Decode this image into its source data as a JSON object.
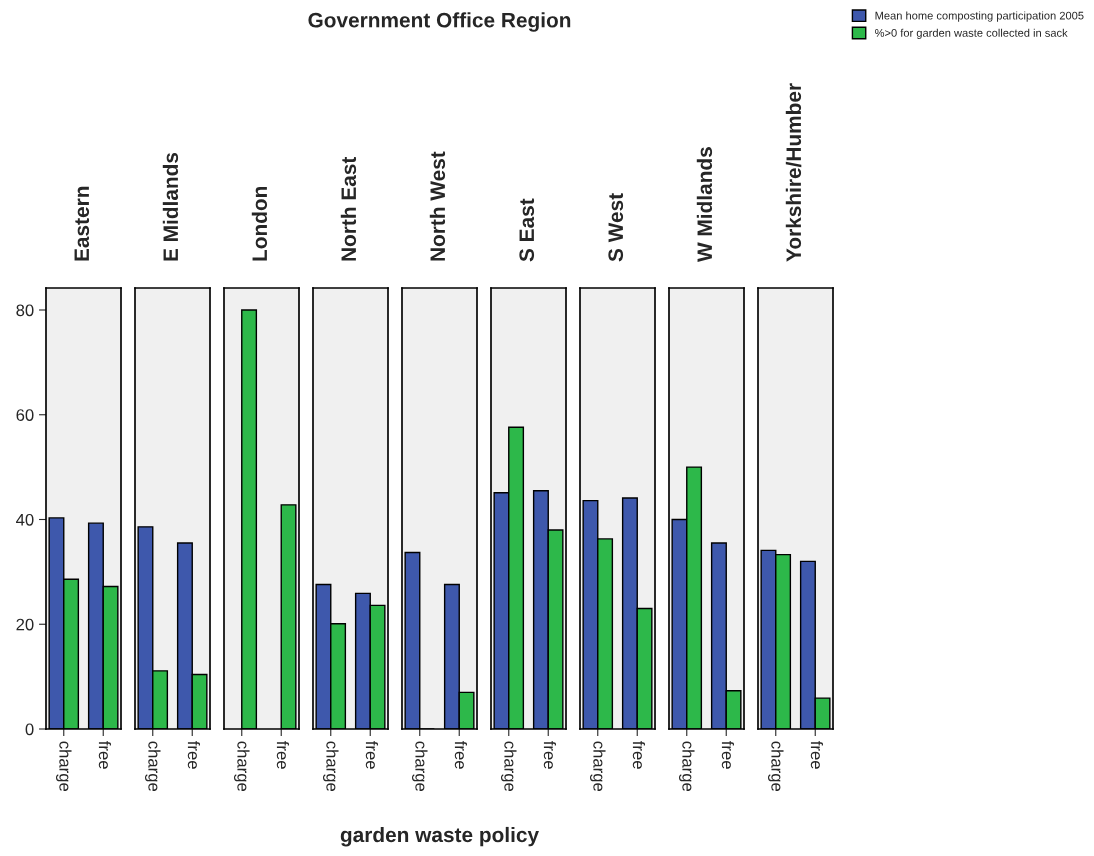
{
  "chart_data": [
    {
      "type": "bar",
      "title": "Eastern",
      "legend": "top right",
      "categories": [
        "charge",
        "free"
      ],
      "ylim": [
        0,
        84.2
      ],
      "yticks": [
        0,
        20,
        40,
        60,
        80
      ],
      "series": [
        {
          "name": "Mean home composting participation 2005",
          "color": "#3e58ac",
          "values": [
            40.3,
            39.3
          ]
        },
        {
          "name": "%>0 for garden waste collected in sack",
          "color": "#2db84a",
          "values": [
            28.6,
            27.2
          ]
        }
      ]
    },
    {
      "type": "bar",
      "title": "E Midlands",
      "categories": [
        "charge",
        "free"
      ],
      "ylim": [
        0,
        84.2
      ],
      "yticks": [
        0,
        20,
        40,
        60,
        80
      ],
      "tick_labels": "x",
      "series": [
        {
          "color": "#3e58ac",
          "values": [
            38.6,
            35.5
          ]
        },
        {
          "color": "#2db84a",
          "values": [
            11.1,
            10.4
          ]
        }
      ]
    },
    {
      "type": "bar",
      "title": "London",
      "categories": [
        "charge",
        "free"
      ],
      "ylim": [
        0,
        84.2
      ],
      "yticks": [
        0,
        20,
        40,
        60,
        80
      ],
      "tick_labels": "x",
      "series": [
        {
          "values": [
            null,
            null
          ]
        },
        {
          "color": "#2db84a",
          "values": [
            80.0,
            42.8
          ]
        }
      ]
    },
    {
      "type": "bar",
      "title": "North East",
      "categories": [
        "charge",
        "free"
      ],
      "ylim": [
        0,
        84.2
      ],
      "yticks": [
        0,
        20,
        40,
        60,
        80
      ],
      "tick_labels": "x",
      "series": [
        {
          "color": "#3e58ac",
          "values": [
            27.6,
            25.9
          ]
        },
        {
          "color": "#2db84a",
          "values": [
            20.1,
            23.6
          ]
        }
      ]
    },
    {
      "type": "bar",
      "title": "North West",
      "annotations": [
        "Government Office Region"
      ],
      "xlabel": "garden waste policy",
      "categories": [
        "charge",
        "free"
      ],
      "ylim": [
        0,
        84.2
      ],
      "yticks": [
        0,
        20,
        40,
        60,
        80
      ],
      "tick_labels": "x",
      "series": [
        {
          "color": "#3e58ac",
          "values": [
            33.7,
            27.6
          ]
        },
        {
          "color": "#2db84a",
          "values": [
            0,
            7.0
          ]
        }
      ]
    },
    {
      "type": "bar",
      "title": "S East",
      "categories": [
        "charge",
        "free"
      ],
      "ylim": [
        0,
        84.2
      ],
      "yticks": [
        0,
        20,
        40,
        60,
        80
      ],
      "tick_labels": "x",
      "series": [
        {
          "color": "#3e58ac",
          "values": [
            45.1,
            45.5
          ]
        },
        {
          "color": "#2db84a",
          "values": [
            57.6,
            38.0
          ]
        }
      ]
    },
    {
      "type": "bar",
      "title": "S West",
      "categories": [
        "charge",
        "free"
      ],
      "ylim": [
        0,
        84.2
      ],
      "yticks": [
        0,
        20,
        40,
        60,
        80
      ],
      "tick_labels": "x",
      "series": [
        {
          "color": "#3e58ac",
          "values": [
            43.6,
            44.1
          ]
        },
        {
          "color": "#2db84a",
          "values": [
            36.3,
            23.0
          ]
        }
      ]
    },
    {
      "type": "bar",
      "title": "W Midlands",
      "categories": [
        "charge",
        "free"
      ],
      "ylim": [
        0,
        84.2
      ],
      "yticks": [
        0,
        20,
        40,
        60,
        80
      ],
      "tick_labels": "x",
      "series": [
        {
          "color": "#3e58ac",
          "values": [
            40.0,
            35.5
          ]
        },
        {
          "color": "#2db84a",
          "values": [
            50.0,
            7.3
          ]
        }
      ]
    },
    {
      "type": "bar",
      "title": "Yorkshire/Humber",
      "categories": [
        "charge",
        "free"
      ],
      "ylim": [
        0,
        84.2
      ],
      "yticks": [
        0,
        20,
        40,
        60,
        80
      ],
      "tick_labels": "x",
      "series": [
        {
          "color": "#3e58ac",
          "values": [
            34.1,
            32.0
          ]
        },
        {
          "color": "#2db84a",
          "values": [
            33.3,
            5.9
          ]
        }
      ]
    }
  ]
}
